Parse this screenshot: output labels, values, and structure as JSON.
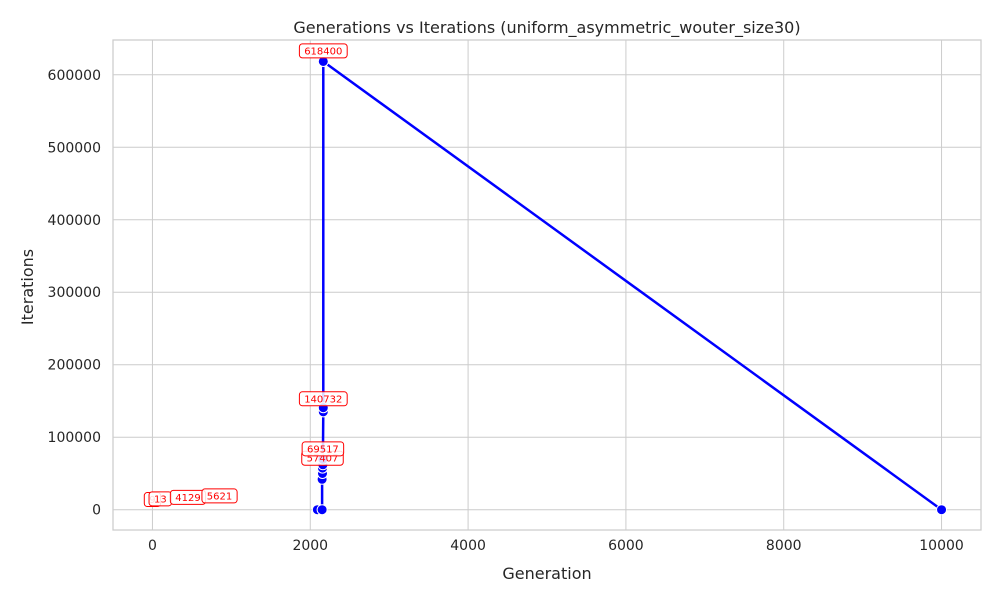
{
  "chart_data": {
    "type": "line",
    "title": "Generations vs Iterations (uniform_asymmetric_wouter_size30)",
    "xlabel": "Generation",
    "ylabel": "Iterations",
    "xlim": [
      -500,
      10500
    ],
    "ylim": [
      -28000,
      648000
    ],
    "xticks": [
      0,
      2000,
      4000,
      6000,
      8000,
      10000
    ],
    "yticks": [
      0,
      100000,
      200000,
      300000,
      400000,
      500000,
      600000
    ],
    "grid": true,
    "series": [
      {
        "name": "iterations",
        "color": "#0000ff",
        "x": [
          2090,
          2150,
          2150,
          2155,
          2155,
          2160,
          2160,
          2165,
          2165,
          2165,
          10000
        ],
        "y": [
          0,
          0,
          42000,
          50000,
          57407,
          62000,
          69517,
          135000,
          140732,
          618400,
          0
        ]
      }
    ],
    "data_labels": [
      {
        "text": "9",
        "x": 0,
        "y": 14000
      },
      {
        "text": "13",
        "x": 100,
        "y": 15000
      },
      {
        "text": "4129",
        "x": 450,
        "y": 17000
      },
      {
        "text": "5621",
        "x": 850,
        "y": 19000
      },
      {
        "text": "57407",
        "x": 2155,
        "y": 71000
      },
      {
        "text": "69517",
        "x": 2160,
        "y": 84000
      },
      {
        "text": "140732",
        "x": 2165,
        "y": 153000
      },
      {
        "text": "618400",
        "x": 2165,
        "y": 633000
      }
    ]
  }
}
